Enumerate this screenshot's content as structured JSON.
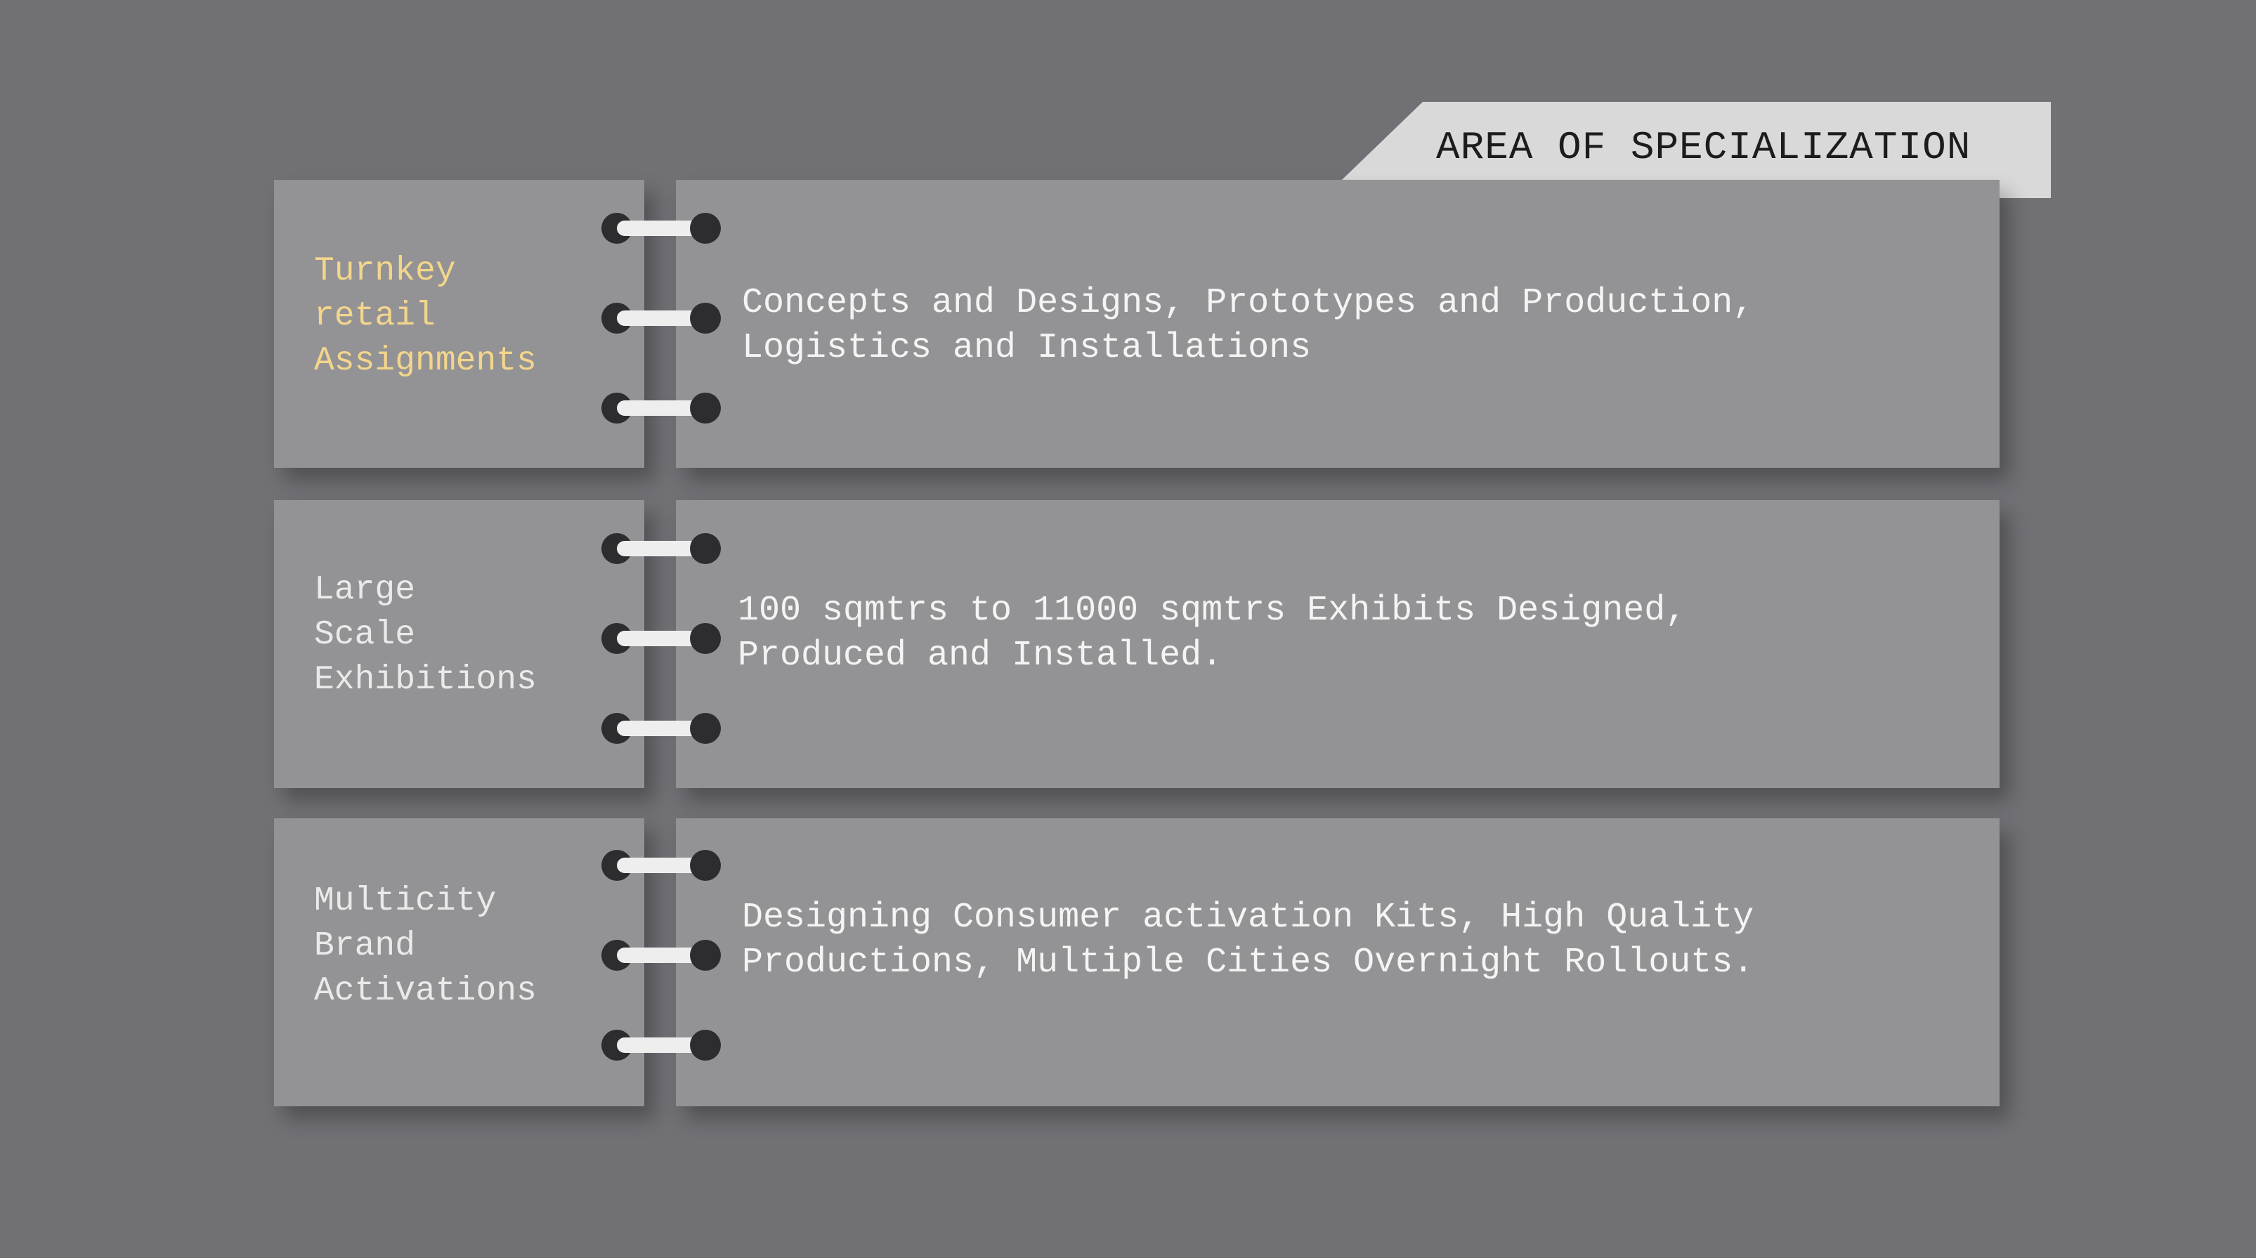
{
  "header": {
    "title": "AREA OF SPECIALIZATION"
  },
  "rows": [
    {
      "label": "Turnkey\nretail\nAssignments",
      "description": "Concepts and Designs, Prototypes and Production,\nLogistics and Installations",
      "highlighted": true
    },
    {
      "label": "Large\nScale\nExhibitions",
      "description": "100 sqmtrs to 11000 sqmtrs Exhibits Designed,\nProduced and Installed."
    },
    {
      "label": "Multicity\nBrand\nActivations",
      "description": "Designing Consumer activation Kits, High Quality\nProductions, Multiple Cities Overnight Rollouts."
    }
  ],
  "colors": {
    "background": "#707075",
    "card": "#939395",
    "header_tab": "#d9d9da",
    "label_accent": "#f3d58c",
    "binder_ring": "#2d2d2f"
  }
}
